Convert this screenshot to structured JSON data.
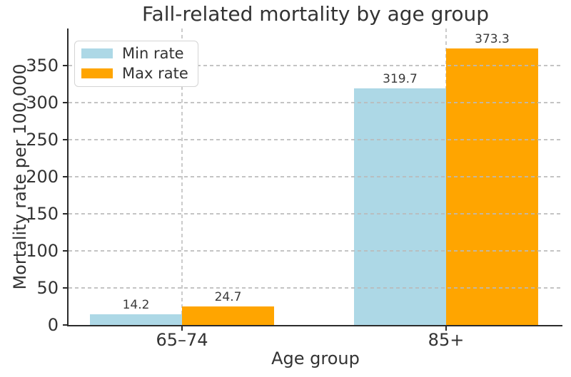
{
  "chart_data": {
    "type": "bar",
    "title": "Fall-related mortality by age group",
    "xlabel": "Age group",
    "ylabel": "Mortality rate per 100,000",
    "categories": [
      "65–74",
      "85+"
    ],
    "series": [
      {
        "name": "Min rate",
        "color": "#ADD8E6",
        "values": [
          14.2,
          319.7
        ]
      },
      {
        "name": "Max rate",
        "color": "#FFA500",
        "values": [
          24.7,
          373.3
        ]
      }
    ],
    "value_labels": [
      [
        "14.2",
        "319.7"
      ],
      [
        "24.7",
        "373.3"
      ]
    ],
    "yticks": [
      0,
      50,
      100,
      150,
      200,
      250,
      300,
      350
    ],
    "ylim": [
      0,
      400
    ],
    "grid": "dashed",
    "legend": {
      "position": "upper-left"
    },
    "colors": {
      "spine": "#2b2b2b",
      "text": "#333333",
      "grid": "#cbcbcb",
      "background": "#ffffff"
    }
  }
}
